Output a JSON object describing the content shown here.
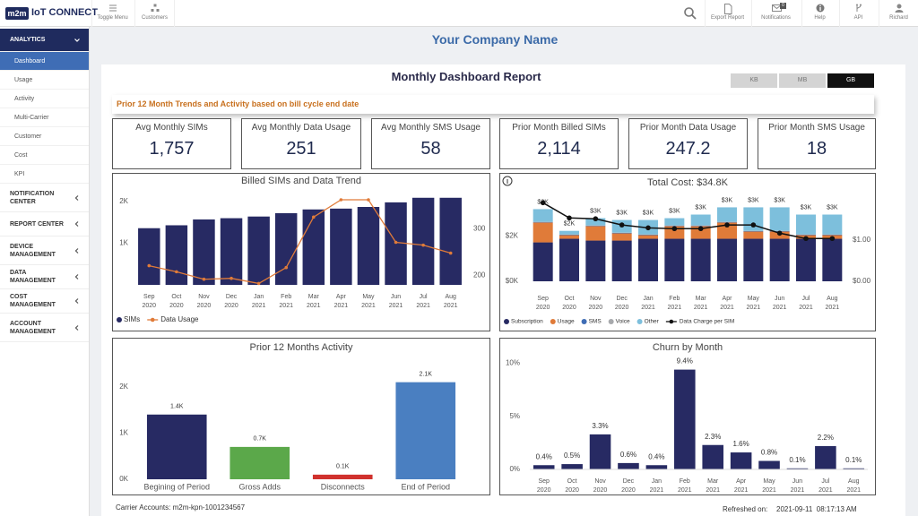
{
  "header": {
    "logo_badge": "m2m",
    "logo_text": "IoT CONNECT",
    "toggle_menu": "Toggle Menu",
    "customers": "Customers",
    "export_report": "Export Report",
    "notifications": "Notifications",
    "notification_count": "0",
    "help": "Help",
    "api": "API",
    "user": "Richard"
  },
  "sidebar": {
    "sections": [
      {
        "label": "ANALYTICS",
        "items": [
          {
            "label": "Dashboard",
            "active": true
          },
          {
            "label": "Usage"
          },
          {
            "label": "Activity"
          },
          {
            "label": "Multi-Carrier"
          },
          {
            "label": "Customer"
          },
          {
            "label": "Cost"
          },
          {
            "label": "KPI"
          }
        ]
      },
      {
        "label": "NOTIFICATION CENTER"
      },
      {
        "label": "REPORT CENTER"
      },
      {
        "label": "DEVICE MANAGEMENT"
      },
      {
        "label": "DATA MANAGEMENT"
      },
      {
        "label": "COST MANAGEMENT"
      },
      {
        "label": "ACCOUNT MANAGEMENT"
      }
    ]
  },
  "company_name": "Your Company Name",
  "report": {
    "title": "Monthly Dashboard Report",
    "units": [
      {
        "label": "KB"
      },
      {
        "label": "MB"
      },
      {
        "label": "GB",
        "selected": true
      }
    ],
    "subtitle": "Prior 12 Month Trends and Activity based on bill cycle end date"
  },
  "kpis": [
    {
      "label": "Avg Monthly SIMs",
      "value": "1,757"
    },
    {
      "label": "Avg Monthly Data Usage",
      "value": 251
    },
    {
      "label": "Avg Monthly SMS Usage",
      "value": 58
    },
    {
      "label": "Prior Month Billed SIMs",
      "value": "2,114"
    },
    {
      "label": "Prior Month Data Usage",
      "value": 247.2
    },
    {
      "label": "Prior Month SMS Usage",
      "value": 18
    }
  ],
  "chart_data": [
    {
      "type": "combo",
      "title": "Billed SIMs and Data Trend",
      "categories": [
        "Sep 2020",
        "Oct 2020",
        "Nov 2020",
        "Dec 2020",
        "Jan 2021",
        "Feb 2021",
        "Mar 2021",
        "Apr 2021",
        "May 2021",
        "Jun 2021",
        "Jul 2021",
        "Aug 2021"
      ],
      "series": [
        {
          "name": "SIMs",
          "type": "bar",
          "color": "#272a63",
          "values": [
            1360,
            1430,
            1570,
            1600,
            1640,
            1720,
            1810,
            1830,
            1870,
            1980,
            2090,
            2090
          ]
        },
        {
          "name": "Data Usage",
          "type": "line",
          "axis": "y2",
          "color": "#e07b39",
          "values": [
            221,
            208,
            192,
            194,
            183,
            217,
            325,
            362,
            362,
            271,
            265,
            248
          ]
        }
      ],
      "ylim": [
        0,
        2300
      ],
      "yticks": [
        {
          "value": 1000,
          "label": "1K"
        },
        {
          "value": 2000,
          "label": "2K"
        }
      ],
      "y2lim": [
        180,
        385
      ],
      "y2ticks": [
        200,
        300
      ],
      "legend": "bottom-left"
    },
    {
      "type": "stacked",
      "title": "Total Cost:  $34.8K",
      "categories": [
        "Sep 2020",
        "Oct 2020",
        "Nov 2020",
        "Dec 2020",
        "Jan 2021",
        "Feb 2021",
        "Mar 2021",
        "Apr 2021",
        "May 2021",
        "Jun 2021",
        "Jul 2021",
        "Aug 2021"
      ],
      "series": [
        {
          "name": "Subscription",
          "type": "bar",
          "color": "#272a63",
          "values": [
            1.72,
            1.88,
            1.8,
            1.8,
            1.88,
            1.88,
            1.88,
            1.88,
            1.88,
            1.88,
            1.88,
            1.88
          ]
        },
        {
          "name": "Usage",
          "type": "bar",
          "color": "#e07b39",
          "values": [
            0.88,
            0.16,
            0.64,
            0.32,
            0.16,
            0.56,
            0.56,
            0.72,
            0.32,
            0.32,
            0.16,
            0.16
          ]
        },
        {
          "name": "SMS",
          "type": "bar",
          "color": "#3f6db5",
          "values": [
            0.02,
            0.02,
            0.02,
            0.02,
            0.02,
            0.02,
            0.02,
            0.02,
            0.02,
            0.02,
            0.02,
            0.02
          ]
        },
        {
          "name": "Voice",
          "type": "bar",
          "color": "#a7a9ac",
          "values": [
            0.01,
            0.01,
            0.01,
            0.01,
            0.01,
            0.01,
            0.01,
            0.01,
            0.01,
            0.01,
            0.01,
            0.01
          ]
        },
        {
          "name": "Other",
          "type": "bar",
          "color": "#7dbfdc",
          "values": [
            0.56,
            0.16,
            0.32,
            0.56,
            0.64,
            0.32,
            0.48,
            0.64,
            1.04,
            1.04,
            0.88,
            0.88
          ]
        },
        {
          "name": "Data Charge per SIM",
          "type": "line",
          "axis": "y2",
          "color": "#111111",
          "values": [
            1.91,
            1.54,
            1.52,
            1.37,
            1.3,
            1.28,
            1.28,
            1.37,
            1.37,
            1.17,
            1.04,
            1.04
          ]
        }
      ],
      "totals": {
        "values": [
          3.19,
          2.23,
          2.79,
          2.71,
          2.71,
          2.79,
          2.95,
          3.27,
          3.27,
          3.27,
          2.95,
          2.95
        ],
        "value_labels": [
          "$3K",
          "$2K",
          "$3K",
          "$3K",
          "$3K",
          "$3K",
          "$3K",
          "$3K",
          "$3K",
          "$3K",
          "$3K",
          "$3K"
        ]
      },
      "ylim": [
        0,
        4
      ],
      "yticks": [
        {
          "value": 0,
          "label": "$0K"
        },
        {
          "value": 2,
          "label": "$2K"
        }
      ],
      "y2lim": [
        0,
        2.2
      ],
      "y2ticks": [
        {
          "value": 0,
          "label": "$0.00"
        },
        {
          "value": 1,
          "label": "$1.00"
        }
      ],
      "legend": "bottom-left"
    },
    {
      "type": "bar",
      "title": "Prior 12 Months Activity",
      "categories": [
        "Begining of Period",
        "Gross Adds",
        "Disconnects",
        "End of Period"
      ],
      "values": [
        1.4,
        0.7,
        0.1,
        2.1
      ],
      "value_labels": [
        "1.4K",
        "0.7K",
        "0.1K",
        "2.1K"
      ],
      "colors": [
        "#272a63",
        "#5ba84a",
        "#d0312d",
        "#4a7fc1"
      ],
      "ylim": [
        0,
        2.5
      ],
      "yticks": [
        {
          "value": 0,
          "label": "0K"
        },
        {
          "value": 1,
          "label": "1K"
        },
        {
          "value": 2,
          "label": "2K"
        }
      ]
    },
    {
      "type": "bar",
      "title": "Churn by Month",
      "categories": [
        "Sep 2020",
        "Oct 2020",
        "Nov 2020",
        "Dec 2020",
        "Jan 2021",
        "Feb 2021",
        "Mar 2021",
        "Apr 2021",
        "May 2021",
        "Jun 2021",
        "Jul 2021",
        "Aug 2021"
      ],
      "values": [
        0.4,
        0.5,
        3.3,
        0.6,
        0.4,
        9.4,
        2.3,
        1.6,
        0.8,
        0.1,
        2.2,
        0.1
      ],
      "value_labels": [
        "0.4%",
        "0.5%",
        "3.3%",
        "0.6%",
        "0.4%",
        "9.4%",
        "2.3%",
        "1.6%",
        "0.8%",
        "0.1%",
        "2.2%",
        "0.1%"
      ],
      "color": "#272a63",
      "ylim": [
        0,
        10.8
      ],
      "yticks": [
        {
          "value": 0,
          "label": "0%"
        },
        {
          "value": 5,
          "label": "5%"
        },
        {
          "value": 10,
          "label": "10%"
        }
      ]
    }
  ],
  "footer": {
    "carrier_accounts": "Carrier Accounts: m2m-kpn-1001234567",
    "refreshed_label": "Refreshed on:",
    "refreshed_at": "2021-09-11  08:17:13 AM"
  }
}
